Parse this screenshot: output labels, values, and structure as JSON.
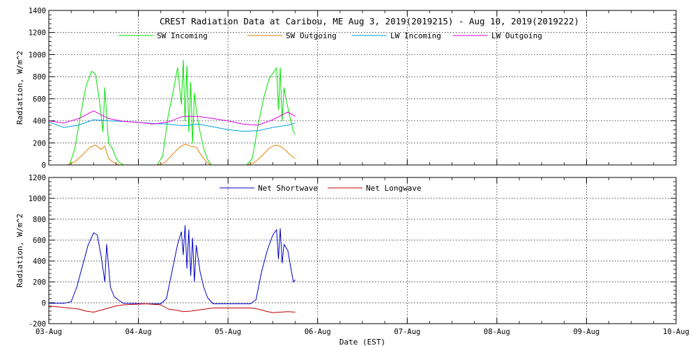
{
  "chart_data": [
    {
      "type": "line",
      "title": "CREST Radiation Data at Caribou, ME   Aug  3, 2019(2019215) - Aug 10, 2019(2019222)",
      "ylabel": "Radiation, W/m^2",
      "xlabel": "",
      "ylim": [
        0,
        1400
      ],
      "yticks": [
        0,
        200,
        400,
        600,
        800,
        1000,
        1200,
        1400
      ],
      "xlim": [
        "2019-08-03",
        "2019-08-10"
      ],
      "grid": true,
      "legend_position": "top-center",
      "series": [
        {
          "name": "SW Incoming",
          "color": "#00e000",
          "x": [
            "2019-08-03 00:00",
            "2019-08-03 04:00",
            "2019-08-03 05:30",
            "2019-08-03 07:00",
            "2019-08-03 08:30",
            "2019-08-03 10:00",
            "2019-08-03 11:30",
            "2019-08-03 12:30",
            "2019-08-03 13:30",
            "2019-08-03 14:30",
            "2019-08-03 15:00",
            "2019-08-03 16:00",
            "2019-08-03 17:00",
            "2019-08-03 18:00",
            "2019-08-03 19:00",
            "2019-08-03 20:00",
            "2019-08-04 05:00",
            "2019-08-04 06:30",
            "2019-08-04 08:00",
            "2019-08-04 09:30",
            "2019-08-04 10:30",
            "2019-08-04 11:30",
            "2019-08-04 12:00",
            "2019-08-04 12:30",
            "2019-08-04 13:00",
            "2019-08-04 13:30",
            "2019-08-04 14:00",
            "2019-08-04 14:30",
            "2019-08-04 15:00",
            "2019-08-04 15:30",
            "2019-08-04 16:30",
            "2019-08-04 17:30",
            "2019-08-04 18:30",
            "2019-08-04 19:30",
            "2019-08-05 05:00",
            "2019-08-05 06:30",
            "2019-08-05 08:00",
            "2019-08-05 09:30",
            "2019-08-05 11:00",
            "2019-08-05 12:00",
            "2019-08-05 13:00",
            "2019-08-05 13:30",
            "2019-08-05 14:00",
            "2019-08-05 14:30",
            "2019-08-05 15:00",
            "2019-08-05 15:30",
            "2019-08-05 16:30",
            "2019-08-05 17:30",
            "2019-08-05 18:00"
          ],
          "y": [
            0,
            0,
            0,
            150,
            450,
            720,
            850,
            820,
            600,
            300,
            700,
            200,
            150,
            60,
            20,
            0,
            0,
            80,
            450,
            700,
            880,
            550,
            950,
            400,
            900,
            300,
            750,
            200,
            650,
            500,
            300,
            150,
            50,
            0,
            0,
            60,
            350,
            600,
            780,
            830,
            880,
            500,
            880,
            400,
            700,
            600,
            450,
            300,
            280
          ]
        },
        {
          "name": "SW Outgoing",
          "color": "#e08000",
          "x": [
            "2019-08-03 00:00",
            "2019-08-03 05:00",
            "2019-08-03 07:00",
            "2019-08-03 09:00",
            "2019-08-03 11:00",
            "2019-08-03 12:30",
            "2019-08-03 14:00",
            "2019-08-03 15:00",
            "2019-08-03 16:00",
            "2019-08-03 17:00",
            "2019-08-03 18:00",
            "2019-08-03 19:00",
            "2019-08-03 20:00",
            "2019-08-04 05:00",
            "2019-08-04 07:00",
            "2019-08-04 09:00",
            "2019-08-04 11:00",
            "2019-08-04 12:30",
            "2019-08-04 14:00",
            "2019-08-04 15:30",
            "2019-08-04 17:00",
            "2019-08-04 18:30",
            "2019-08-04 19:30",
            "2019-08-05 05:00",
            "2019-08-05 07:00",
            "2019-08-05 09:00",
            "2019-08-05 11:00",
            "2019-08-05 12:30",
            "2019-08-05 14:00",
            "2019-08-05 15:30",
            "2019-08-05 17:00",
            "2019-08-05 18:00"
          ],
          "y": [
            0,
            0,
            30,
            90,
            160,
            180,
            140,
            170,
            60,
            30,
            10,
            0,
            0,
            0,
            20,
            90,
            160,
            190,
            170,
            160,
            80,
            20,
            0,
            0,
            20,
            80,
            150,
            180,
            170,
            130,
            80,
            60
          ]
        },
        {
          "name": "LW Incoming",
          "color": "#00a0e0",
          "x": [
            "2019-08-03 00:00",
            "2019-08-03 04:00",
            "2019-08-03 08:00",
            "2019-08-03 12:00",
            "2019-08-03 16:00",
            "2019-08-03 20:00",
            "2019-08-04 00:00",
            "2019-08-04 04:00",
            "2019-08-04 08:00",
            "2019-08-04 12:00",
            "2019-08-04 16:00",
            "2019-08-04 20:00",
            "2019-08-05 00:00",
            "2019-08-05 04:00",
            "2019-08-05 08:00",
            "2019-08-05 12:00",
            "2019-08-05 16:00",
            "2019-08-05 18:00"
          ],
          "y": [
            390,
            340,
            360,
            410,
            400,
            395,
            385,
            375,
            370,
            355,
            370,
            345,
            320,
            305,
            310,
            340,
            360,
            380
          ]
        },
        {
          "name": "LW Outgoing",
          "color": "#e000e0",
          "x": [
            "2019-08-03 00:00",
            "2019-08-03 04:00",
            "2019-08-03 08:00",
            "2019-08-03 12:00",
            "2019-08-03 16:00",
            "2019-08-03 20:00",
            "2019-08-04 00:00",
            "2019-08-04 04:00",
            "2019-08-04 08:00",
            "2019-08-04 12:00",
            "2019-08-04 16:00",
            "2019-08-04 20:00",
            "2019-08-05 00:00",
            "2019-08-05 04:00",
            "2019-08-05 08:00",
            "2019-08-05 12:00",
            "2019-08-05 16:00",
            "2019-08-05 18:00"
          ],
          "y": [
            400,
            380,
            420,
            490,
            420,
            395,
            385,
            370,
            390,
            440,
            440,
            420,
            400,
            370,
            360,
            410,
            480,
            440
          ]
        }
      ]
    },
    {
      "type": "line",
      "title": "",
      "ylabel": "Radiation, W/m^2",
      "xlabel": "Date (EST)",
      "ylim": [
        -200,
        1200
      ],
      "yticks": [
        -200,
        0,
        200,
        400,
        600,
        800,
        1000,
        1200
      ],
      "xlim": [
        "2019-08-03",
        "2019-08-10"
      ],
      "xticks": [
        "03-Aug",
        "04-Aug",
        "05-Aug",
        "06-Aug",
        "07-Aug",
        "08-Aug",
        "09-Aug",
        "10-Aug"
      ],
      "grid": true,
      "legend_position": "top-center",
      "series": [
        {
          "name": "Net Shortwave",
          "color": "#0000c0",
          "x": [
            "2019-08-03 00:00",
            "2019-08-03 04:00",
            "2019-08-03 06:00",
            "2019-08-03 07:30",
            "2019-08-03 09:00",
            "2019-08-03 10:30",
            "2019-08-03 12:00",
            "2019-08-03 13:00",
            "2019-08-03 14:00",
            "2019-08-03 15:00",
            "2019-08-03 15:30",
            "2019-08-03 16:30",
            "2019-08-03 17:30",
            "2019-08-03 18:30",
            "2019-08-03 20:00",
            "2019-08-04 02:00",
            "2019-08-04 06:00",
            "2019-08-04 07:30",
            "2019-08-04 09:00",
            "2019-08-04 10:30",
            "2019-08-04 11:30",
            "2019-08-04 12:00",
            "2019-08-04 12:30",
            "2019-08-04 13:00",
            "2019-08-04 13:30",
            "2019-08-04 14:00",
            "2019-08-04 14:30",
            "2019-08-04 15:00",
            "2019-08-04 15:30",
            "2019-08-04 16:30",
            "2019-08-04 17:30",
            "2019-08-04 18:30",
            "2019-08-04 20:00",
            "2019-08-05 02:00",
            "2019-08-05 06:00",
            "2019-08-05 07:30",
            "2019-08-05 09:00",
            "2019-08-05 10:30",
            "2019-08-05 12:00",
            "2019-08-05 13:00",
            "2019-08-05 13:30",
            "2019-08-05 14:00",
            "2019-08-05 14:30",
            "2019-08-05 15:00",
            "2019-08-05 16:00",
            "2019-08-05 17:00",
            "2019-08-05 17:30",
            "2019-08-05 18:00"
          ],
          "y": [
            -5,
            -5,
            10,
            150,
            350,
            550,
            670,
            650,
            450,
            200,
            560,
            150,
            60,
            30,
            -5,
            -10,
            -10,
            40,
            300,
            560,
            680,
            460,
            740,
            330,
            700,
            260,
            620,
            200,
            550,
            300,
            150,
            50,
            -10,
            -10,
            -10,
            30,
            300,
            500,
            650,
            700,
            420,
            710,
            380,
            560,
            500,
            300,
            200,
            220
          ]
        },
        {
          "name": "Net Longwave",
          "color": "#c00000",
          "x": [
            "2019-08-03 00:00",
            "2019-08-03 04:00",
            "2019-08-03 08:00",
            "2019-08-03 10:00",
            "2019-08-03 12:00",
            "2019-08-03 14:00",
            "2019-08-03 16:00",
            "2019-08-03 18:00",
            "2019-08-03 20:00",
            "2019-08-04 02:00",
            "2019-08-04 06:00",
            "2019-08-04 08:00",
            "2019-08-04 10:00",
            "2019-08-04 12:00",
            "2019-08-04 14:00",
            "2019-08-04 16:00",
            "2019-08-04 18:00",
            "2019-08-04 20:00",
            "2019-08-05 02:00",
            "2019-08-05 06:00",
            "2019-08-05 08:00",
            "2019-08-05 10:00",
            "2019-08-05 12:00",
            "2019-08-05 14:00",
            "2019-08-05 16:00",
            "2019-08-05 18:00"
          ],
          "y": [
            -30,
            -45,
            -60,
            -80,
            -90,
            -70,
            -50,
            -30,
            -20,
            -10,
            -20,
            -60,
            -70,
            -85,
            -80,
            -70,
            -60,
            -50,
            -50,
            -50,
            -60,
            -80,
            -95,
            -90,
            -85,
            -90
          ]
        }
      ]
    }
  ]
}
